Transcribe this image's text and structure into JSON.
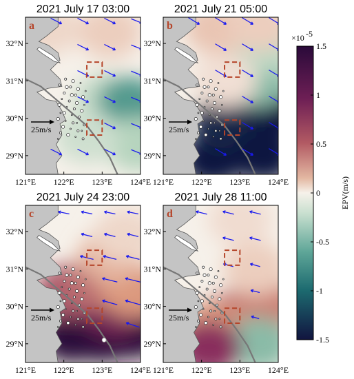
{
  "chart_data": {
    "type": "heatmap",
    "panels": [
      {
        "letter": "a",
        "title": "2021 July 17 03:00",
        "blobs": [
          {
            "lon": 123.1,
            "lat": 30.5,
            "v": -0.3
          },
          {
            "lon": 123.7,
            "lat": 30.4,
            "v": -0.8
          },
          {
            "lon": 123.9,
            "lat": 29.3,
            "v": -0.4
          },
          {
            "lon": 122.6,
            "lat": 29.5,
            "v": -0.25
          },
          {
            "lon": 123.2,
            "lat": 32.3,
            "v": 0.2
          },
          {
            "lon": 121.6,
            "lat": 32.4,
            "v": 0.15
          }
        ],
        "wind": [
          {
            "lon": 121.8,
            "lat": 32.6,
            "u": 1.0,
            "v": -0.5
          },
          {
            "lon": 122.5,
            "lat": 32.6,
            "u": 1.0,
            "v": -0.5
          },
          {
            "lon": 123.2,
            "lat": 32.6,
            "u": 1.0,
            "v": -0.5
          },
          {
            "lon": 123.9,
            "lat": 32.6,
            "u": 1.0,
            "v": -0.4
          },
          {
            "lon": 122.5,
            "lat": 31.9,
            "u": 1.0,
            "v": -0.5
          },
          {
            "lon": 123.2,
            "lat": 31.9,
            "u": 1.0,
            "v": -0.5
          },
          {
            "lon": 123.9,
            "lat": 31.9,
            "u": 1.0,
            "v": -0.4
          },
          {
            "lon": 122.5,
            "lat": 31.2,
            "u": 1.0,
            "v": -0.5
          },
          {
            "lon": 123.2,
            "lat": 31.2,
            "u": 1.0,
            "v": -0.5
          },
          {
            "lon": 123.9,
            "lat": 31.2,
            "u": 1.0,
            "v": -0.4
          },
          {
            "lon": 122.5,
            "lat": 30.5,
            "u": 1.0,
            "v": -0.5
          },
          {
            "lon": 123.2,
            "lat": 30.5,
            "u": 1.0,
            "v": -0.5
          },
          {
            "lon": 123.9,
            "lat": 30.5,
            "u": 1.0,
            "v": -0.4
          },
          {
            "lon": 123.2,
            "lat": 29.8,
            "u": 1.0,
            "v": -0.5
          },
          {
            "lon": 123.9,
            "lat": 29.8,
            "u": 1.0,
            "v": -0.4
          },
          {
            "lon": 121.8,
            "lat": 29.1,
            "u": 1.0,
            "v": -0.5
          },
          {
            "lon": 122.5,
            "lat": 29.1,
            "u": 1.0,
            "v": -0.5
          },
          {
            "lon": 123.2,
            "lat": 29.1,
            "u": 1.0,
            "v": -0.5
          },
          {
            "lon": 123.9,
            "lat": 29.1,
            "u": 1.0,
            "v": -0.4
          }
        ]
      },
      {
        "letter": "b",
        "title": "2021 July 21 05:00",
        "blobs": [
          {
            "lon": 123.0,
            "lat": 29.4,
            "v": -1.8
          },
          {
            "lon": 122.3,
            "lat": 28.9,
            "v": -1.8
          },
          {
            "lon": 123.8,
            "lat": 30.1,
            "v": -1.7
          },
          {
            "lon": 122.6,
            "lat": 29.9,
            "v": -1.4
          },
          {
            "lon": 123.6,
            "lat": 29.0,
            "v": -1.5
          },
          {
            "lon": 123.5,
            "lat": 31.0,
            "v": -0.6
          },
          {
            "lon": 123.6,
            "lat": 31.9,
            "v": -0.35
          },
          {
            "lon": 122.4,
            "lat": 32.4,
            "v": 0.25
          },
          {
            "lon": 123.5,
            "lat": 32.5,
            "v": 0.2
          },
          {
            "lon": 122.6,
            "lat": 31.0,
            "v": 0.1
          }
        ],
        "wind": [
          {
            "lon": 121.8,
            "lat": 32.6,
            "u": 1.0,
            "v": -0.6
          },
          {
            "lon": 122.5,
            "lat": 32.6,
            "u": 1.0,
            "v": -0.6
          },
          {
            "lon": 123.2,
            "lat": 32.6,
            "u": 1.0,
            "v": -0.6
          },
          {
            "lon": 123.9,
            "lat": 32.6,
            "u": 1.0,
            "v": -0.6
          },
          {
            "lon": 122.5,
            "lat": 31.9,
            "u": 1.0,
            "v": -0.6
          },
          {
            "lon": 123.2,
            "lat": 31.9,
            "u": 1.0,
            "v": -0.6
          },
          {
            "lon": 123.9,
            "lat": 31.9,
            "u": 1.0,
            "v": -0.6
          },
          {
            "lon": 122.5,
            "lat": 31.2,
            "u": 1.0,
            "v": -0.6
          },
          {
            "lon": 123.2,
            "lat": 31.2,
            "u": 1.0,
            "v": -0.6
          },
          {
            "lon": 123.9,
            "lat": 31.2,
            "u": 1.0,
            "v": -0.6
          },
          {
            "lon": 123.2,
            "lat": 30.5,
            "u": 1.0,
            "v": -0.6
          },
          {
            "lon": 123.9,
            "lat": 30.5,
            "u": 1.0,
            "v": -0.6
          },
          {
            "lon": 123.2,
            "lat": 29.8,
            "u": 1.0,
            "v": -0.6
          },
          {
            "lon": 123.9,
            "lat": 29.8,
            "u": 1.0,
            "v": -0.6
          },
          {
            "lon": 122.5,
            "lat": 29.1,
            "u": 1.0,
            "v": -0.6
          },
          {
            "lon": 123.2,
            "lat": 29.1,
            "u": 1.0,
            "v": -0.6
          },
          {
            "lon": 123.9,
            "lat": 29.1,
            "u": 1.0,
            "v": -0.6
          }
        ]
      },
      {
        "letter": "c",
        "title": "2021 July 24 23:00",
        "blobs": [
          {
            "lon": 123.0,
            "lat": 29.2,
            "v": 1.8
          },
          {
            "lon": 122.2,
            "lat": 29.2,
            "v": 1.7
          },
          {
            "lon": 123.8,
            "lat": 29.3,
            "v": 1.8
          },
          {
            "lon": 123.3,
            "lat": 29.9,
            "v": 1.1
          },
          {
            "lon": 122.1,
            "lat": 30.4,
            "v": 0.8
          },
          {
            "lon": 122.8,
            "lat": 30.6,
            "v": 0.7
          },
          {
            "lon": 123.8,
            "lat": 30.4,
            "v": 0.5
          },
          {
            "lon": 123.2,
            "lat": 31.3,
            "v": 0.35
          },
          {
            "lon": 123.6,
            "lat": 31.9,
            "v": 0.15
          }
        ],
        "wind": [
          {
            "lon": 122.0,
            "lat": 32.5,
            "u": -1.0,
            "v": 0.2
          },
          {
            "lon": 122.6,
            "lat": 32.5,
            "u": -1.0,
            "v": 0.2
          },
          {
            "lon": 123.2,
            "lat": 32.5,
            "u": -1.0,
            "v": 0.2
          },
          {
            "lon": 123.8,
            "lat": 32.5,
            "u": -1.0,
            "v": 0.2
          },
          {
            "lon": 122.6,
            "lat": 31.9,
            "u": -1.0,
            "v": 0.25
          },
          {
            "lon": 123.2,
            "lat": 31.9,
            "u": -1.0,
            "v": 0.25
          },
          {
            "lon": 123.8,
            "lat": 31.9,
            "u": -1.0,
            "v": 0.25
          },
          {
            "lon": 122.6,
            "lat": 31.3,
            "u": -1.2,
            "v": 0.3
          },
          {
            "lon": 123.2,
            "lat": 31.3,
            "u": -1.2,
            "v": 0.3
          },
          {
            "lon": 123.8,
            "lat": 31.3,
            "u": -1.2,
            "v": 0.3
          },
          {
            "lon": 123.2,
            "lat": 30.7,
            "u": -1.4,
            "v": 0.35
          },
          {
            "lon": 123.8,
            "lat": 30.7,
            "u": -1.4,
            "v": 0.35
          },
          {
            "lon": 123.2,
            "lat": 30.1,
            "u": -1.4,
            "v": 0.4
          },
          {
            "lon": 123.8,
            "lat": 30.1,
            "u": -1.4,
            "v": 0.4
          },
          {
            "lon": 123.8,
            "lat": 29.5,
            "u": -1.2,
            "v": 0.4
          }
        ]
      },
      {
        "letter": "d",
        "title": "2021 July 28 11:00",
        "blobs": [
          {
            "lon": 122.9,
            "lat": 29.7,
            "v": 0.7
          },
          {
            "lon": 123.7,
            "lat": 30.0,
            "v": 0.6
          },
          {
            "lon": 122.2,
            "lat": 29.4,
            "v": 0.5
          },
          {
            "lon": 123.5,
            "lat": 29.0,
            "v": -0.6
          },
          {
            "lon": 122.2,
            "lat": 28.9,
            "v": 1.0
          },
          {
            "lon": 123.4,
            "lat": 31.0,
            "v": 0.2
          },
          {
            "lon": 123.0,
            "lat": 32.3,
            "v": 0.12
          }
        ],
        "wind": [
          {
            "lon": 122.0,
            "lat": 32.5,
            "u": -1.0,
            "v": 0.25
          },
          {
            "lon": 122.7,
            "lat": 32.5,
            "u": -1.0,
            "v": 0.25
          },
          {
            "lon": 123.4,
            "lat": 32.5,
            "u": -1.0,
            "v": 0.25
          },
          {
            "lon": 122.7,
            "lat": 31.8,
            "u": -1.0,
            "v": 0.25
          },
          {
            "lon": 123.4,
            "lat": 31.8,
            "u": -1.0,
            "v": 0.25
          },
          {
            "lon": 122.7,
            "lat": 31.1,
            "u": -0.9,
            "v": 0.25
          },
          {
            "lon": 123.4,
            "lat": 31.1,
            "u": -0.9,
            "v": 0.25
          },
          {
            "lon": 123.4,
            "lat": 30.4,
            "u": -0.8,
            "v": 0.2
          },
          {
            "lon": 123.4,
            "lat": 29.7,
            "u": -0.7,
            "v": 0.2
          }
        ]
      }
    ],
    "xlim": [
      121,
      124
    ],
    "ylim": [
      28.5,
      32.7
    ],
    "xticks": [
      "121°E",
      "122°E",
      "123°E",
      "124°E"
    ],
    "xtick_values": [
      121,
      122,
      123,
      124
    ],
    "yticks": [
      "29°N",
      "30°N",
      "31°N",
      "32°N"
    ],
    "ytick_values": [
      29,
      30,
      31,
      32
    ],
    "boxes": [
      {
        "lon": [
          122.6,
          123.0
        ],
        "lat": [
          31.1,
          31.5
        ]
      },
      {
        "lon": [
          122.6,
          123.0
        ],
        "lat": [
          29.55,
          29.95
        ]
      }
    ],
    "scale_arrow": {
      "label": "25m/s"
    },
    "colorbar": {
      "label": "EPV(m/s)",
      "exponent": "×10",
      "exponent_power": "-5",
      "range": [
        -1.5,
        1.5
      ],
      "ticks": [
        "1.5",
        "1",
        "0.5",
        "0",
        "-0.5",
        "-1",
        "-1.5"
      ],
      "tick_values": [
        1.5,
        1,
        0.5,
        0,
        -0.5,
        -1,
        -1.5
      ]
    },
    "colors": {
      "positive_max": "#2a0a3a",
      "positive_mid": "#8b2f5e",
      "positive_low": "#dd9a7e",
      "zero": "#f6f1ea",
      "negative_low": "#a7cdb4",
      "negative_mid": "#1f7a76",
      "negative_max": "#11143f",
      "land": "#c4c4c4",
      "wind_arrow": "#1a1aee",
      "box": "#b5452a",
      "track": "#777777"
    }
  }
}
